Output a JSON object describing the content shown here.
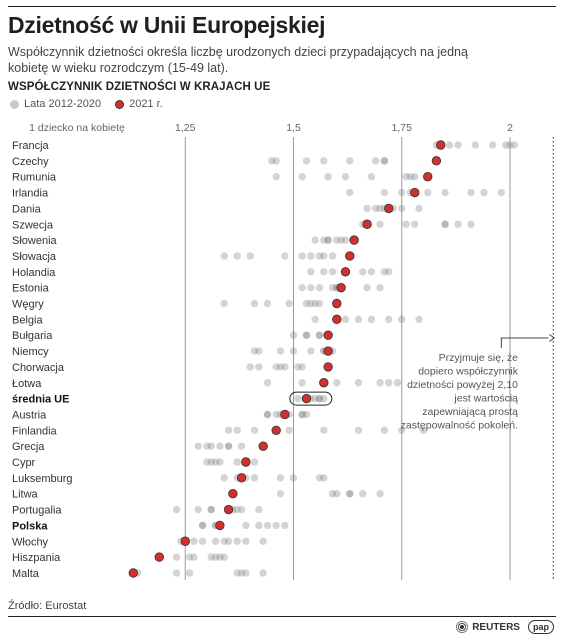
{
  "header": {
    "title": "Dzietność w Unii Europejskiej",
    "subtitle": "Współczynnik dzietności określa liczbę urodzonych dzieci przypadających na jedną kobietę w wieku rozrodczym (15-49 lat).",
    "section": "WSPÓŁCZYNNIK DZIETNOŚCI W KRAJACH UE"
  },
  "legend": {
    "past_label": "Lata 2012-2020",
    "current_label": "2021 r.",
    "past_color": "#c8c8c8",
    "current_color": "#d32f2f"
  },
  "footer": {
    "source": "Źródło: Eurostat",
    "logo_reuters": "REUTERS",
    "logo_pap": "pap"
  },
  "chart_data": {
    "type": "scatter",
    "title": "WSPÓŁCZYNNIK DZIETNOŚCI W KRAJACH UE",
    "x_ticks": [
      {
        "value": 1.0,
        "label": "1 dziecko na kobietę"
      },
      {
        "value": 1.25,
        "label": "1,25"
      },
      {
        "value": 1.5,
        "label": "1,5"
      },
      {
        "value": 1.75,
        "label": "1,75"
      },
      {
        "value": 2.0,
        "label": "2"
      }
    ],
    "xlim": [
      0.82,
      2.12
    ],
    "replacement_level": 2.1,
    "annotation": "Przyjmuje się, że dopiero współczynnik dzietności powyżej 2,10 jest wartością zapewniającą prostą zastępowalność pokoleń.",
    "series_names": [
      "Lata 2012-2020",
      "2021 r."
    ],
    "countries": [
      {
        "name": "Francja",
        "bold": false,
        "past": [
          1.83,
          1.86,
          1.88,
          1.92,
          1.96,
          1.99,
          2.0,
          2.01
        ],
        "y2021": 1.84
      },
      {
        "name": "Czechy",
        "bold": false,
        "past": [
          1.45,
          1.46,
          1.53,
          1.57,
          1.63,
          1.69,
          1.71,
          1.71
        ],
        "y2021": 1.83
      },
      {
        "name": "Rumunia",
        "bold": false,
        "past": [
          1.46,
          1.52,
          1.58,
          1.62,
          1.68,
          1.76,
          1.77,
          1.78
        ],
        "y2021": 1.81
      },
      {
        "name": "Irlandia",
        "bold": false,
        "past": [
          1.63,
          1.71,
          1.75,
          1.77,
          1.81,
          1.85,
          1.91,
          1.94,
          1.98
        ],
        "y2021": 1.78
      },
      {
        "name": "Dania",
        "bold": false,
        "past": [
          1.67,
          1.69,
          1.7,
          1.71,
          1.73,
          1.75,
          1.79
        ],
        "y2021": 1.72
      },
      {
        "name": "Szwecja",
        "bold": false,
        "past": [
          1.66,
          1.7,
          1.76,
          1.78,
          1.85,
          1.85,
          1.88,
          1.91
        ],
        "y2021": 1.67
      },
      {
        "name": "Słowenia",
        "bold": false,
        "past": [
          1.55,
          1.57,
          1.58,
          1.58,
          1.6,
          1.61,
          1.62
        ],
        "y2021": 1.64
      },
      {
        "name": "Słowacja",
        "bold": false,
        "past": [
          1.34,
          1.37,
          1.4,
          1.48,
          1.52,
          1.54,
          1.56,
          1.57,
          1.59
        ],
        "y2021": 1.63
      },
      {
        "name": "Holandia",
        "bold": false,
        "past": [
          1.54,
          1.57,
          1.59,
          1.62,
          1.66,
          1.68,
          1.71,
          1.72
        ],
        "y2021": 1.62
      },
      {
        "name": "Estonia",
        "bold": false,
        "past": [
          1.52,
          1.54,
          1.56,
          1.59,
          1.6,
          1.6,
          1.67,
          1.7
        ],
        "y2021": 1.61
      },
      {
        "name": "Węgry",
        "bold": false,
        "past": [
          1.34,
          1.41,
          1.44,
          1.49,
          1.53,
          1.54,
          1.55,
          1.56
        ],
        "y2021": 1.6
      },
      {
        "name": "Belgia",
        "bold": false,
        "past": [
          1.55,
          1.6,
          1.62,
          1.65,
          1.68,
          1.72,
          1.75,
          1.79
        ],
        "y2021": 1.6
      },
      {
        "name": "Bułgaria",
        "bold": false,
        "past": [
          1.5,
          1.53,
          1.53,
          1.56,
          1.56,
          1.58,
          1.58
        ],
        "y2021": 1.58
      },
      {
        "name": "Niemcy",
        "bold": false,
        "past": [
          1.41,
          1.42,
          1.47,
          1.5,
          1.54,
          1.57,
          1.57,
          1.59
        ],
        "y2021": 1.58
      },
      {
        "name": "Chorwacja",
        "bold": false,
        "past": [
          1.4,
          1.42,
          1.46,
          1.47,
          1.48,
          1.51,
          1.52
        ],
        "y2021": 1.58
      },
      {
        "name": "Łotwa",
        "bold": false,
        "past": [
          1.44,
          1.52,
          1.6,
          1.65,
          1.7,
          1.72,
          1.74
        ],
        "y2021": 1.57
      },
      {
        "name": "średnia UE",
        "bold": true,
        "past": [
          1.51,
          1.53,
          1.54,
          1.55,
          1.56,
          1.56,
          1.57
        ],
        "y2021": 1.53
      },
      {
        "name": "Austria",
        "bold": false,
        "past": [
          1.44,
          1.44,
          1.46,
          1.47,
          1.49,
          1.52,
          1.52,
          1.53
        ],
        "y2021": 1.48
      },
      {
        "name": "Finlandia",
        "bold": false,
        "past": [
          1.35,
          1.37,
          1.41,
          1.49,
          1.57,
          1.65,
          1.71,
          1.75,
          1.8
        ],
        "y2021": 1.46
      },
      {
        "name": "Grecja",
        "bold": false,
        "past": [
          1.28,
          1.3,
          1.31,
          1.33,
          1.35,
          1.35,
          1.38
        ],
        "y2021": 1.43
      },
      {
        "name": "Cypr",
        "bold": false,
        "past": [
          1.3,
          1.31,
          1.32,
          1.33,
          1.37,
          1.39,
          1.41
        ],
        "y2021": 1.39
      },
      {
        "name": "Luksemburg",
        "bold": false,
        "past": [
          1.34,
          1.37,
          1.38,
          1.39,
          1.41,
          1.47,
          1.5,
          1.56,
          1.57
        ],
        "y2021": 1.38
      },
      {
        "name": "Litwa",
        "bold": false,
        "past": [
          1.47,
          1.59,
          1.6,
          1.63,
          1.63,
          1.66,
          1.7
        ],
        "y2021": 1.36
      },
      {
        "name": "Portugalia",
        "bold": false,
        "past": [
          1.23,
          1.28,
          1.31,
          1.31,
          1.36,
          1.37,
          1.38,
          1.42
        ],
        "y2021": 1.35
      },
      {
        "name": "Polska",
        "bold": true,
        "past": [
          1.29,
          1.29,
          1.32,
          1.32,
          1.39,
          1.42,
          1.44,
          1.46,
          1.48
        ],
        "y2021": 1.33
      },
      {
        "name": "Włochy",
        "bold": false,
        "past": [
          1.24,
          1.27,
          1.29,
          1.32,
          1.34,
          1.35,
          1.37,
          1.39,
          1.43
        ],
        "y2021": 1.25
      },
      {
        "name": "Hiszpania",
        "bold": false,
        "past": [
          1.19,
          1.23,
          1.26,
          1.27,
          1.31,
          1.32,
          1.33,
          1.34
        ],
        "y2021": 1.19
      },
      {
        "name": "Malta",
        "bold": false,
        "past": [
          1.14,
          1.23,
          1.26,
          1.37,
          1.38,
          1.39,
          1.43
        ],
        "y2021": 1.13
      }
    ]
  }
}
